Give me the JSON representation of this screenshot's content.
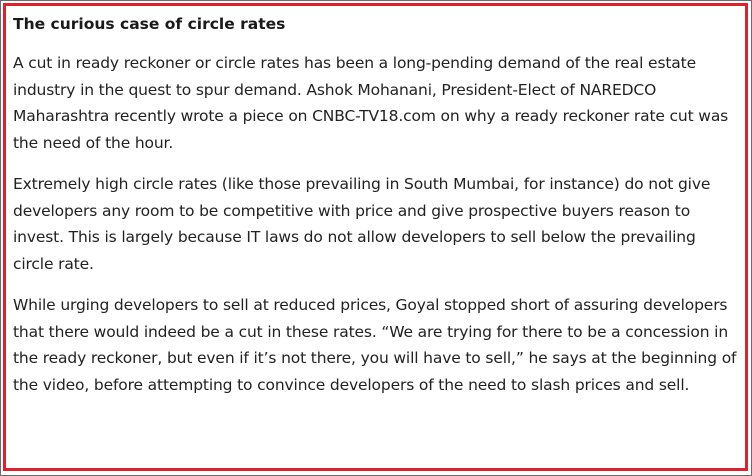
{
  "article": {
    "heading": "The curious case of circle rates",
    "paragraphs": [
      "A cut in ready reckoner or circle rates has been a long-pending demand of the real estate industry in the quest to spur demand. Ashok Mohanani, President-Elect of NAREDCO Maharashtra recently wrote a piece on CNBC-TV18.com on why a ready reckoner rate cut was the need of the hour.",
      "Extremely high circle rates (like those prevailing in South Mumbai, for instance) do not give developers any room to be competitive with price and give prospective buyers reason to invest. This is largely because IT laws do not allow developers to sell below the prevailing circle rate.",
      "While urging developers to sell at reduced prices, Goyal stopped short of assuring developers that there would indeed be a cut in these rates. “We are trying for there to be a concession in the ready reckoner, but even if it’s not there, you will have to sell,” he says at the beginning of the video, before attempting to convince developers of the need to slash prices and sell."
    ]
  },
  "colors": {
    "highlight_border": "#e0202b",
    "frame_border": "#6b6b6b",
    "text": "#222222"
  }
}
